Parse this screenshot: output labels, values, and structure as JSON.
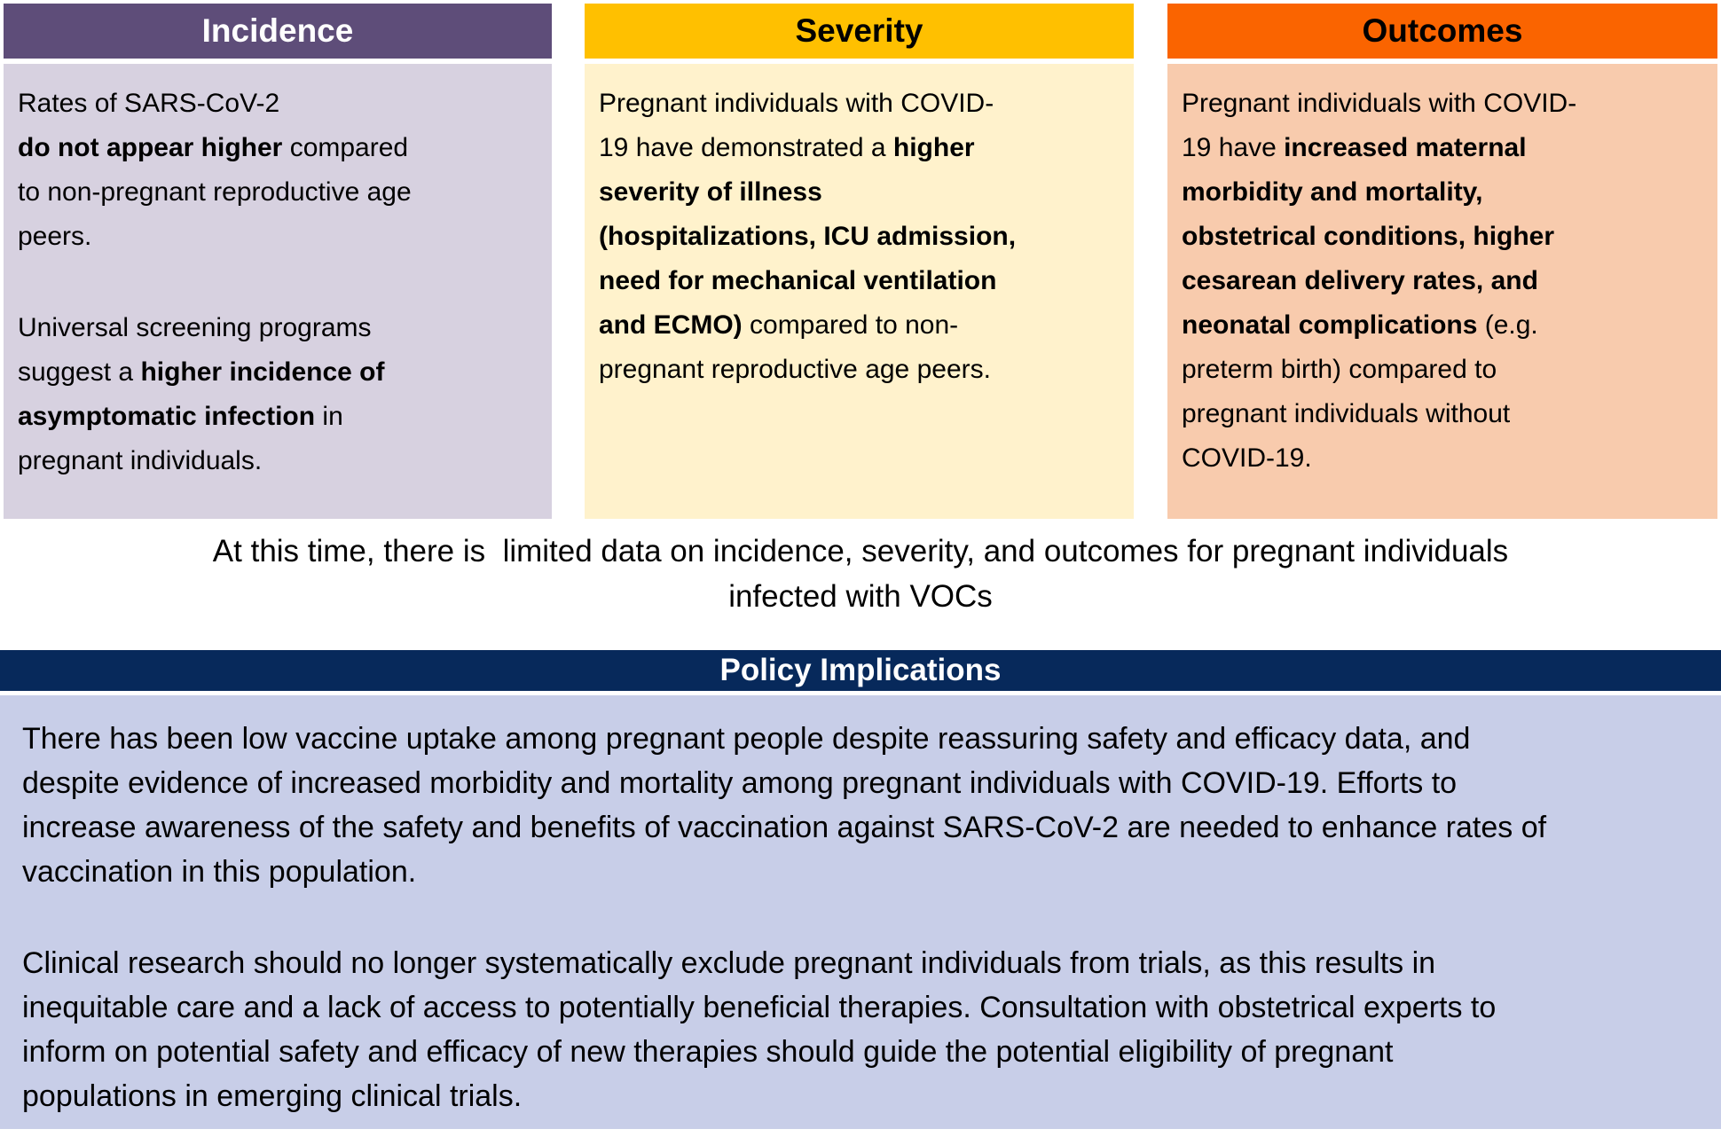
{
  "columns": [
    {
      "title": "Incidence",
      "header_bg": "#5E4D79",
      "header_color": "#FFFFFF",
      "body_bg": "#D7D1E0",
      "paragraphs": [
        [
          {
            "t": "Rates of SARS-CoV-2\n",
            "b": false
          },
          {
            "t": "do not appear higher",
            "b": true
          },
          {
            "t": " compared\nto non-pregnant reproductive age\npeers.",
            "b": false
          }
        ],
        [
          {
            "t": "Universal screening programs\nsuggest a ",
            "b": false
          },
          {
            "t": "higher incidence of\nasymptomatic infection",
            "b": true
          },
          {
            "t": " in\npregnant individuals.",
            "b": false
          }
        ]
      ]
    },
    {
      "title": "Severity",
      "header_bg": "#FFC000",
      "header_color": "#000000",
      "body_bg": "#FFF2CC",
      "paragraphs": [
        [
          {
            "t": "Pregnant individuals with COVID-\n19 have demonstrated a ",
            "b": false
          },
          {
            "t": "higher\nseverity of illness\n(hospitalizations, ICU admission,\nneed for mechanical ventilation\nand ECMO)",
            "b": true
          },
          {
            "t": " compared to non-\npregnant reproductive age peers.",
            "b": false
          }
        ]
      ]
    },
    {
      "title": "Outcomes",
      "header_bg": "#FA6400",
      "header_color": "#000000",
      "body_bg": "#F8CBAD",
      "paragraphs": [
        [
          {
            "t": "Pregnant individuals with COVID-\n19 have ",
            "b": false
          },
          {
            "t": "increased maternal\nmorbidity and mortality,\nobstetrical conditions, higher\ncesarean delivery rates, and\nneonatal complications",
            "b": true
          },
          {
            "t": " (e.g.\npreterm birth) compared to\npregnant individuals without\nCOVID-19.",
            "b": false
          }
        ]
      ]
    }
  ],
  "note": {
    "text": "At this time, there is  limited data on incidence, severity, and outcomes for pregnant individuals\ninfected with VOCs"
  },
  "policy": {
    "title": "Policy Implications",
    "header_bg": "#07295B",
    "header_color": "#FFFFFF",
    "body_bg": "#C8CEE8",
    "paragraphs": [
      "There has been low vaccine uptake among pregnant people despite reassuring safety and efficacy data, and\ndespite evidence of increased morbidity and mortality among pregnant individuals with COVID-19. Efforts to\nincrease awareness of the safety and benefits of vaccination against SARS-CoV-2 are needed to enhance rates of\nvaccination in this population.",
      "Clinical research should no longer systematically exclude pregnant individuals from trials, as this results in\ninequitable care and a lack of access to potentially beneficial therapies. Consultation with obstetrical experts to\ninform on potential safety and efficacy of new therapies should guide the potential eligibility of pregnant\npopulations in emerging clinical trials."
    ]
  }
}
